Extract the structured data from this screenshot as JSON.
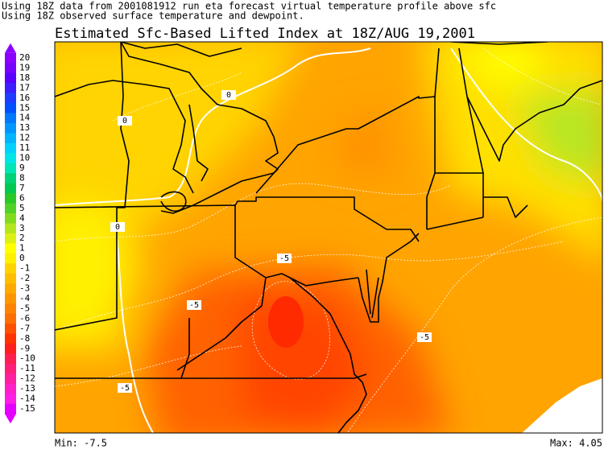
{
  "header": {
    "lines": [
      "Using 18Z data from 2001081912 run eta forecast virtual temperature profile above sfc",
      "Using 18Z observed surface temperature and dewpoint."
    ],
    "title": "Estimated Sfc-Based Lifted Index at 18Z/AUG 19,2001"
  },
  "legend": [
    {
      "value": 20,
      "color": "#8c00ff"
    },
    {
      "value": 19,
      "color": "#7800ff"
    },
    {
      "value": 18,
      "color": "#5a00ff"
    },
    {
      "value": 17,
      "color": "#3c1eff"
    },
    {
      "value": 16,
      "color": "#1e3cff"
    },
    {
      "value": 15,
      "color": "#0050ff"
    },
    {
      "value": 14,
      "color": "#0078ff"
    },
    {
      "value": 13,
      "color": "#0096ff"
    },
    {
      "value": 12,
      "color": "#00b4ff"
    },
    {
      "value": 11,
      "color": "#00d2ff"
    },
    {
      "value": 10,
      "color": "#00e6e6"
    },
    {
      "value": 9,
      "color": "#00e6b4"
    },
    {
      "value": 8,
      "color": "#00d278"
    },
    {
      "value": 7,
      "color": "#00c850"
    },
    {
      "value": 6,
      "color": "#28c828"
    },
    {
      "value": 5,
      "color": "#50d228"
    },
    {
      "value": 4,
      "color": "#82dc1e"
    },
    {
      "value": 3,
      "color": "#b4e61e"
    },
    {
      "value": 2,
      "color": "#dcf014"
    },
    {
      "value": 1,
      "color": "#ffff00"
    },
    {
      "value": 0,
      "color": "#fff000"
    },
    {
      "value": -1,
      "color": "#ffd200"
    },
    {
      "value": -2,
      "color": "#ffbe00"
    },
    {
      "value": -3,
      "color": "#ffaa00"
    },
    {
      "value": -4,
      "color": "#ff9600"
    },
    {
      "value": -5,
      "color": "#ff8200"
    },
    {
      "value": -6,
      "color": "#ff6e00"
    },
    {
      "value": -7,
      "color": "#ff5000"
    },
    {
      "value": -8,
      "color": "#ff3200"
    },
    {
      "value": -9,
      "color": "#ff1e1e"
    },
    {
      "value": -10,
      "color": "#ff1e50"
    },
    {
      "value": -11,
      "color": "#ff1e78"
    },
    {
      "value": -12,
      "color": "#ff1ea0"
    },
    {
      "value": -13,
      "color": "#ff1ec8"
    },
    {
      "value": -14,
      "color": "#ff1ee6"
    },
    {
      "value": -15,
      "color": "#e600ff"
    }
  ],
  "contour_labels": [
    0,
    0,
    0,
    -5,
    -5,
    -5,
    -5
  ],
  "footer": {
    "min": "Min: -7.5",
    "max": "Max: 4.05"
  }
}
